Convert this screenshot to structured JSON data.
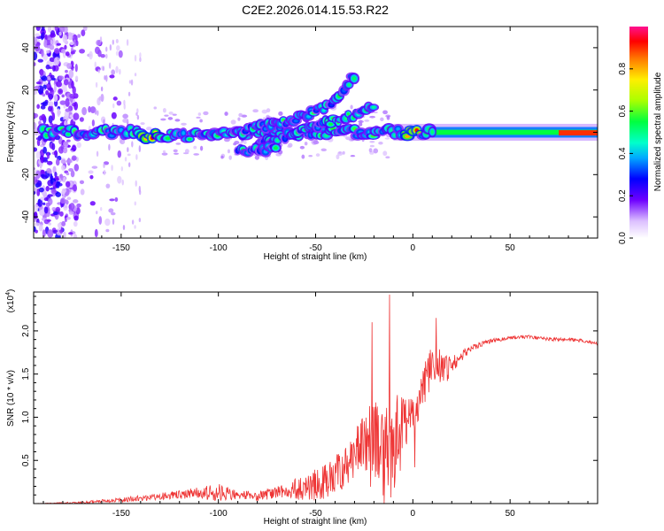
{
  "title": "C2E2.2026.014.15.53.R22",
  "chart_data": [
    {
      "type": "heatmap",
      "title": "C2E2.2026.014.15.53.R22",
      "xlabel": "Height of straight line (km)",
      "ylabel": "Frequency (Hz)",
      "xlim": [
        -195,
        95
      ],
      "ylim": [
        -50,
        50
      ],
      "xticks": [
        -150,
        -100,
        -50,
        0,
        50
      ],
      "yticks": [
        -40,
        -20,
        0,
        20,
        40
      ],
      "x_tick_labels": [
        "-150",
        "-100",
        "-50",
        "0",
        "50"
      ],
      "y_tick_labels": [
        "-40",
        "-20",
        "0",
        "20",
        "40"
      ],
      "colorbar": {
        "label": "Normalized spectral amplitude",
        "range": [
          0.0,
          1.0
        ],
        "ticks": [
          0.0,
          0.2,
          0.4,
          0.6,
          0.8
        ],
        "tick_labels": [
          "0.0",
          "0.2",
          "0.4",
          "0.6",
          "0.8"
        ],
        "colormap": "rainbow (white-violet-blue-cyan-green-yellow-red-magenta)"
      },
      "features": [
        {
          "name": "main-band",
          "x_range": [
            -190,
            95
          ],
          "center_freq_hz": 0,
          "halfwidth_hz": 3,
          "note": "narrow band near 0 Hz; strongest (red) near x=0 and x>80"
        },
        {
          "name": "upper-branch",
          "x": [
            -90,
            -70,
            -55,
            -45,
            -40,
            -35,
            -30
          ],
          "freq_hz": [
            0,
            4,
            8,
            12,
            15,
            20,
            27
          ]
        },
        {
          "name": "middle-branch",
          "x": [
            -80,
            -60,
            -45,
            -35,
            -25,
            -20
          ],
          "freq_hz": [
            -5,
            0,
            4,
            7,
            10,
            12
          ]
        },
        {
          "name": "lower-branch",
          "x": [
            -90,
            -80,
            -70
          ],
          "freq_hz": [
            -8,
            -9,
            -7
          ]
        },
        {
          "name": "broadband-noise",
          "x_range": [
            -195,
            -150
          ],
          "freq_range_hz": [
            -50,
            50
          ]
        }
      ]
    },
    {
      "type": "line",
      "xlabel": "Height of straight line (km)",
      "ylabel": "SNR (10 * v/v)",
      "y_multiplier": "(x10",
      "y_multiplier_exp": "4",
      "y_multiplier_close": ")",
      "xlim": [
        -195,
        95
      ],
      "ylim": [
        0,
        2.45
      ],
      "xticks": [
        -150,
        -100,
        -50,
        0,
        50
      ],
      "yticks": [
        0.5,
        1.0,
        1.5,
        2.0
      ],
      "x_tick_labels": [
        "-150",
        "-100",
        "-50",
        "0",
        "50"
      ],
      "y_tick_labels": [
        "0.5",
        "1.0",
        "1.5",
        "2.0"
      ],
      "color": "#ee3333",
      "envelope": {
        "x": [
          -195,
          -170,
          -150,
          -130,
          -110,
          -100,
          -90,
          -80,
          -70,
          -60,
          -50,
          -40,
          -30,
          -25,
          -20,
          -15,
          -12,
          -8,
          -4,
          0,
          4,
          8,
          12,
          16,
          20,
          25,
          30,
          40,
          50,
          60,
          70,
          80,
          90,
          95
        ],
        "base": [
          0.0,
          0.01,
          0.04,
          0.08,
          0.12,
          0.12,
          0.1,
          0.08,
          0.12,
          0.15,
          0.2,
          0.3,
          0.45,
          0.7,
          0.6,
          0.5,
          0.4,
          0.7,
          0.9,
          1.0,
          1.2,
          1.5,
          1.6,
          1.5,
          1.6,
          1.7,
          1.8,
          1.88,
          1.92,
          1.93,
          1.9,
          1.9,
          1.88,
          1.85
        ],
        "noise": [
          0.0,
          0.02,
          0.04,
          0.06,
          0.1,
          0.16,
          0.08,
          0.08,
          0.12,
          0.2,
          0.3,
          0.35,
          0.45,
          0.7,
          0.8,
          1.0,
          0.9,
          0.8,
          0.5,
          0.3,
          0.35,
          0.4,
          0.35,
          0.3,
          0.15,
          0.1,
          0.06,
          0.04,
          0.03,
          0.03,
          0.03,
          0.03,
          0.03,
          0.03
        ]
      },
      "peaks": [
        {
          "x": -12,
          "y": 2.42
        },
        {
          "x": -21,
          "y": 2.1
        },
        {
          "x": 12,
          "y": 2.15
        },
        {
          "x": 1,
          "y": 0.42
        }
      ]
    }
  ]
}
